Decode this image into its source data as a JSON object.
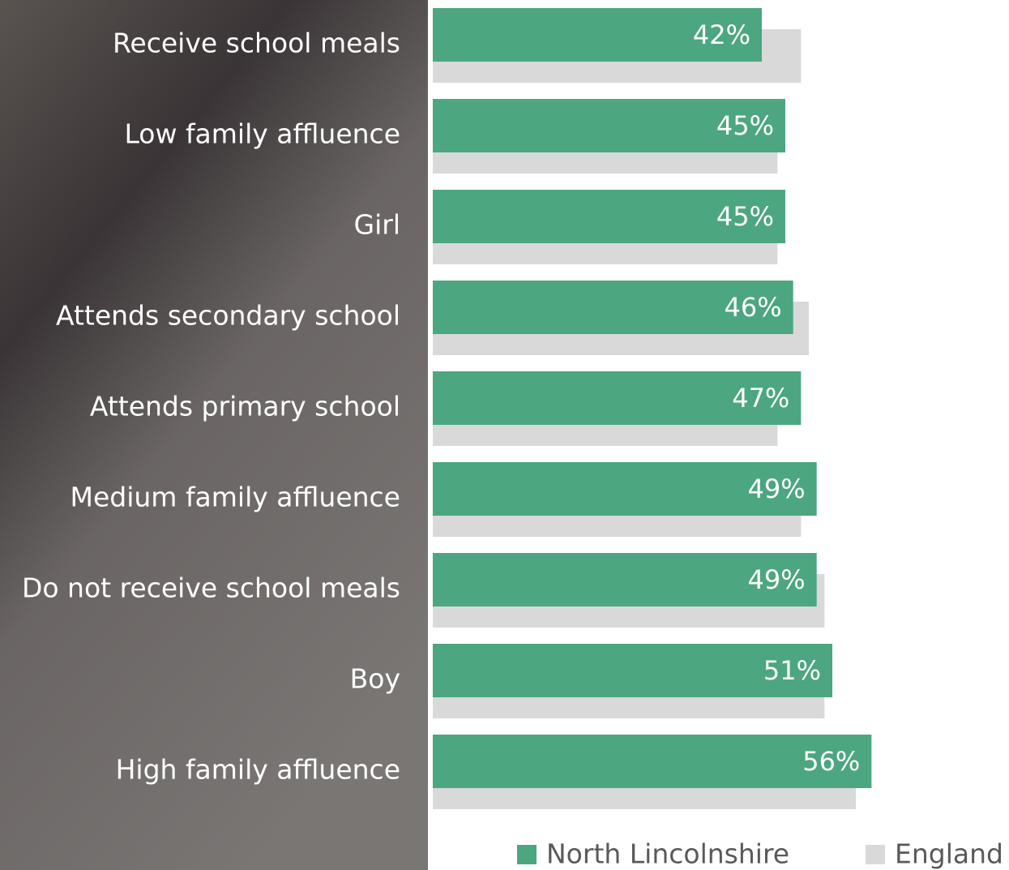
{
  "chart_data": {
    "type": "bar",
    "orientation": "horizontal",
    "categories": [
      "Receive school meals",
      "Low family affluence",
      "Girl",
      "Attends secondary school",
      "Attends primary school",
      "Medium family affluence",
      "Do not receive school meals",
      "Boy",
      "High family affluence"
    ],
    "series": [
      {
        "name": "North Lincolnshire",
        "color": "#4ca67f",
        "values": [
          42,
          45,
          45,
          46,
          47,
          49,
          49,
          51,
          56
        ],
        "value_labels": [
          "42%",
          "45%",
          "45%",
          "46%",
          "47%",
          "49%",
          "49%",
          "51%",
          "56%"
        ]
      },
      {
        "name": "England",
        "color": "#d9d9d9",
        "values": [
          47,
          44,
          44,
          48,
          44,
          47,
          50,
          50,
          54
        ]
      }
    ],
    "xlim": [
      0,
      72
    ]
  }
}
